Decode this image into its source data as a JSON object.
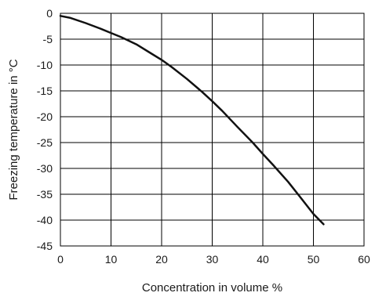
{
  "chart_data": {
    "type": "line",
    "title": "",
    "xlabel": "Concentration in volume %",
    "ylabel": "Freezing temperature in °C",
    "xlim": [
      0,
      60
    ],
    "ylim": [
      -45,
      0
    ],
    "x_ticks": [
      "0",
      "10",
      "20",
      "30",
      "40",
      "50",
      "60"
    ],
    "y_ticks": [
      "0",
      "-5",
      "-10",
      "-15",
      "-20",
      "-25",
      "-30",
      "-35",
      "-40",
      "-45"
    ],
    "grid": true,
    "line_color": "#111111",
    "series": [
      {
        "x": [
          0,
          2,
          5,
          8,
          10,
          12,
          15,
          18,
          20,
          22,
          25,
          28,
          30,
          32,
          35,
          38,
          40,
          42,
          45,
          48,
          50,
          52
        ],
        "y": [
          -0.5,
          -0.9,
          -1.9,
          -3.0,
          -3.8,
          -4.6,
          -6.0,
          -7.8,
          -9.0,
          -10.4,
          -12.7,
          -15.2,
          -17.0,
          -18.9,
          -22.0,
          -25.0,
          -27.2,
          -29.3,
          -32.6,
          -36.3,
          -38.8,
          -40.8
        ]
      }
    ]
  }
}
